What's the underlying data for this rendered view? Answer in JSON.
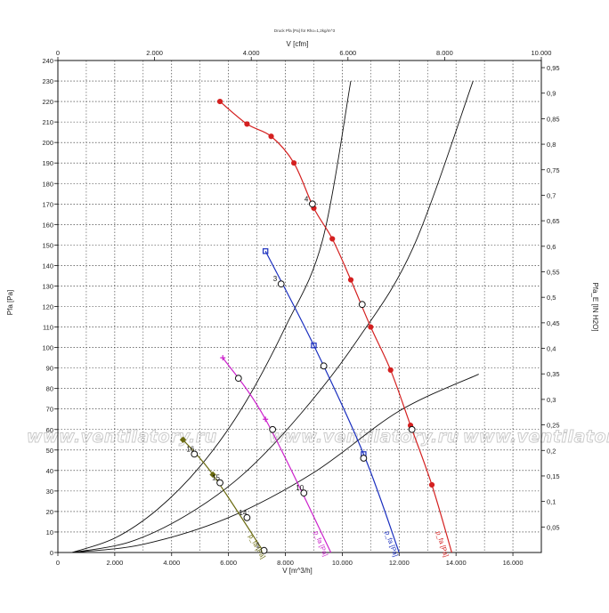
{
  "chart_data": {
    "type": "line",
    "title": "Druck Pfa [Pa] für Rho=1,2kg/m^3",
    "top_axis_label": "V [cfm]",
    "xlabel": "V [m^3/h]",
    "ylabel": "Pfa [Pa]",
    "y2label": "Pfa_E [IN H2O]",
    "xlim": [
      0,
      17000
    ],
    "ylim": [
      0,
      240
    ],
    "x_ticks": [
      0,
      2000,
      4000,
      6000,
      8000,
      10000,
      12000,
      14000,
      16000
    ],
    "x_tick_labels": [
      "0",
      "2.000",
      "4.000",
      "6.000",
      "8.000",
      "10.000",
      "12.000",
      "14.000",
      "16.000"
    ],
    "y_ticks": [
      0,
      10,
      20,
      30,
      40,
      50,
      60,
      70,
      80,
      90,
      100,
      110,
      120,
      130,
      140,
      150,
      160,
      170,
      180,
      190,
      200,
      210,
      220,
      230,
      240
    ],
    "y_tick_labels": [
      "0",
      "10",
      "20",
      "30",
      "40",
      "50",
      "60",
      "70",
      "80",
      "90",
      "100",
      "110",
      "120",
      "130",
      "140",
      "150",
      "160",
      "170",
      "180",
      "190",
      "200",
      "210",
      "220",
      "230",
      "240"
    ],
    "top_ticks": [
      0,
      2000,
      4000,
      6000,
      8000,
      10000
    ],
    "top_tick_labels": [
      "0",
      "2.000",
      "4.000",
      "6.000",
      "8.000",
      "10.000"
    ],
    "right_ticks": [
      0.05,
      0.1,
      0.15,
      0.2,
      0.25,
      0.3,
      0.35,
      0.4,
      0.45,
      0.5,
      0.55,
      0.6,
      0.65,
      0.7,
      0.75,
      0.8,
      0.85,
      0.9,
      0.95
    ],
    "right_tick_labels": [
      "0,05",
      "0,1",
      "0,15",
      "0,2",
      "0,25",
      "0,3",
      "0,35",
      "0,4",
      "0,45",
      "0,5",
      "0,55",
      "0,6",
      "0,65",
      "0,7",
      "0,75",
      "0,8",
      "0,85",
      "0,9",
      "0,95"
    ],
    "grid": true,
    "series": [
      {
        "name": "p_fa [Pa]",
        "color": "#d42020",
        "marker": "circle",
        "x": [
          5700,
          6650,
          7500,
          8300,
          9000,
          9650,
          10300,
          11000,
          11700,
          12400,
          13150,
          13850
        ],
        "y": [
          220,
          209,
          203,
          190,
          168,
          153,
          133,
          110,
          89,
          62,
          33,
          0
        ]
      },
      {
        "name": "p_fa [Pa]",
        "color": "#1a2fbf",
        "marker": "square",
        "x": [
          7300,
          9000,
          10750,
          12000
        ],
        "y": [
          147,
          101,
          48,
          0
        ]
      },
      {
        "name": "p_fa [Pa]",
        "color": "#cc22cc",
        "marker": "cross",
        "x": [
          5800,
          7300,
          9600
        ],
        "y": [
          95,
          65,
          0
        ]
      },
      {
        "name": "p_fa [Pa]",
        "color": "#6b6b10",
        "marker": "diamond",
        "x": [
          4400,
          5450,
          7250
        ],
        "y": [
          55,
          38,
          0
        ]
      }
    ],
    "system_curves": [
      {
        "x": [
          500,
          2000,
          3500,
          5000,
          6500,
          8000,
          9300,
          10300
        ],
        "y": [
          0,
          7,
          21,
          42,
          71,
          110,
          152,
          230
        ]
      },
      {
        "x": [
          500,
          2500,
          4500,
          6500,
          8500,
          10500,
          12500,
          14600
        ],
        "y": [
          0,
          5,
          18,
          38,
          67,
          103,
          149,
          230
        ]
      },
      {
        "x": [
          500,
          3000,
          6000,
          9000,
          12000,
          14800
        ],
        "y": [
          0,
          4,
          17,
          39,
          69,
          87
        ]
      }
    ],
    "operating_points": [
      {
        "label": "4",
        "x": 8950,
        "y": 170
      },
      {
        "label": "3",
        "x": 7850,
        "y": 131
      },
      {
        "label": "",
        "x": 7550,
        "y": 60
      },
      {
        "label": "",
        "x": 10700,
        "y": 121
      },
      {
        "label": "",
        "x": 9350,
        "y": 91
      },
      {
        "label": "",
        "x": 12450,
        "y": 60
      },
      {
        "label": "",
        "x": 10750,
        "y": 46
      },
      {
        "label": "",
        "x": 6350,
        "y": 85
      },
      {
        "label": "10",
        "x": 8650,
        "y": 29
      },
      {
        "label": "16",
        "x": 4800,
        "y": 48
      },
      {
        "label": "15",
        "x": 5700,
        "y": 34
      },
      {
        "label": "14",
        "x": 6650,
        "y": 17
      },
      {
        "label": "1",
        "x": 7250,
        "y": 1
      }
    ],
    "curve_labels": [
      {
        "text": "p_fa [Pa]",
        "color": "#d42020"
      },
      {
        "text": "p_fa [Pa]",
        "color": "#1a2fbf"
      },
      {
        "text": "p_fa [Pa]",
        "color": "#cc22cc"
      },
      {
        "text": "p_fa [Pa]",
        "color": "#6b6b10"
      }
    ],
    "watermark": "www.ventilatory.ru"
  }
}
